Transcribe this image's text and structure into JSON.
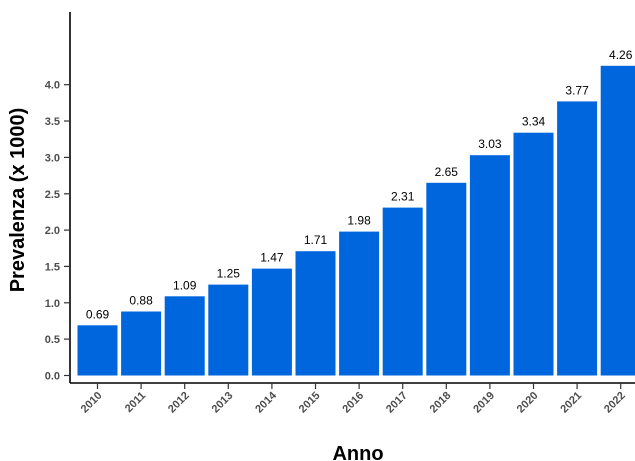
{
  "chart_data": {
    "type": "bar",
    "title": "",
    "xlabel": "Anno",
    "ylabel": "Prevalenza (x 1000)",
    "categories": [
      "2010",
      "2011",
      "2012",
      "2013",
      "2014",
      "2015",
      "2016",
      "2017",
      "2018",
      "2019",
      "2020",
      "2021",
      "2022"
    ],
    "values": [
      0.69,
      0.88,
      1.09,
      1.25,
      1.47,
      1.71,
      1.98,
      2.31,
      2.65,
      3.03,
      3.34,
      3.77,
      4.26
    ],
    "value_labels": [
      "0.69",
      "0.88",
      "1.09",
      "1.25",
      "1.47",
      "1.71",
      "1.98",
      "2.31",
      "2.65",
      "3.03",
      "3.34",
      "3.77",
      "4.26"
    ],
    "y_ticks": [
      0.0,
      0.5,
      1.0,
      1.5,
      2.0,
      2.5,
      3.0,
      3.5,
      4.0
    ],
    "y_tick_labels": [
      "0.0",
      "0.5",
      "1.0",
      "1.5",
      "2.0",
      "2.5",
      "3.0",
      "3.5",
      "4.0"
    ],
    "ylim": [
      0,
      5
    ],
    "grid": false,
    "legend": "none",
    "bar_color": "#0066dd"
  }
}
